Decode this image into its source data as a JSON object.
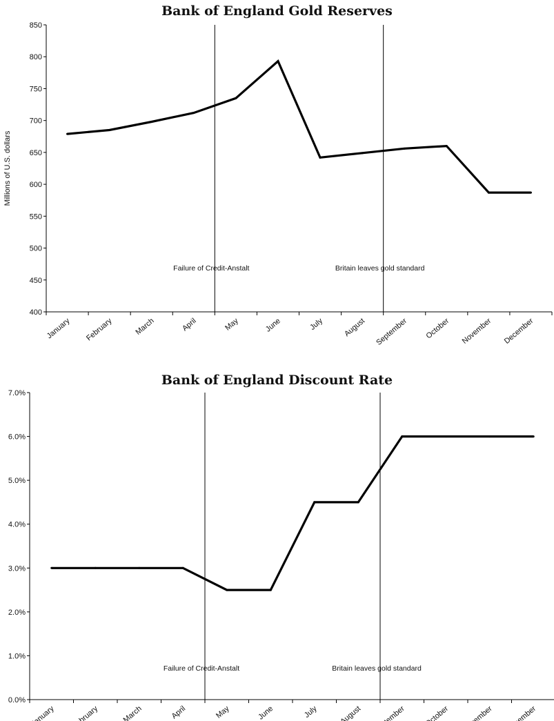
{
  "chart_data": [
    {
      "type": "line",
      "title": "Bank of England Gold Reserves",
      "xlabel": "",
      "ylabel": "Millions of U.S. dollars",
      "categories": [
        "January",
        "February",
        "March",
        "April",
        "May",
        "June",
        "July",
        "August",
        "September",
        "October",
        "November",
        "December"
      ],
      "values": [
        679,
        685,
        698,
        712,
        735,
        793,
        642,
        649,
        656,
        660,
        587,
        587
      ],
      "ylim": [
        400,
        850
      ],
      "yticks": [
        "400",
        "450",
        "500",
        "550",
        "600",
        "650",
        "700",
        "750",
        "800",
        "850"
      ],
      "annotations": [
        {
          "label": "Failure of Credit-Anstalt",
          "after_category_index": 3
        },
        {
          "label": "Britain leaves gold standard",
          "after_category_index": 7
        }
      ],
      "grid": false,
      "legend": "none"
    },
    {
      "type": "line",
      "title": "Bank of England Discount Rate",
      "xlabel": "",
      "ylabel": "",
      "categories": [
        "January",
        "February",
        "March",
        "April",
        "May",
        "June",
        "July",
        "August",
        "September",
        "October",
        "November",
        "December"
      ],
      "values": [
        3.0,
        3.0,
        3.0,
        3.0,
        2.5,
        2.5,
        4.5,
        4.5,
        6.0,
        6.0,
        6.0,
        6.0
      ],
      "ylim": [
        0,
        7
      ],
      "yticks": [
        "0.0%",
        "1.0%",
        "2.0%",
        "3.0%",
        "4.0%",
        "5.0%",
        "6.0%",
        "7.0%"
      ],
      "annotations": [
        {
          "label": "Failure of Credit-Anstalt",
          "after_category_index": 3
        },
        {
          "label": "Britain leaves gold standard",
          "after_category_index": 7
        }
      ],
      "grid": false,
      "legend": "none"
    }
  ]
}
